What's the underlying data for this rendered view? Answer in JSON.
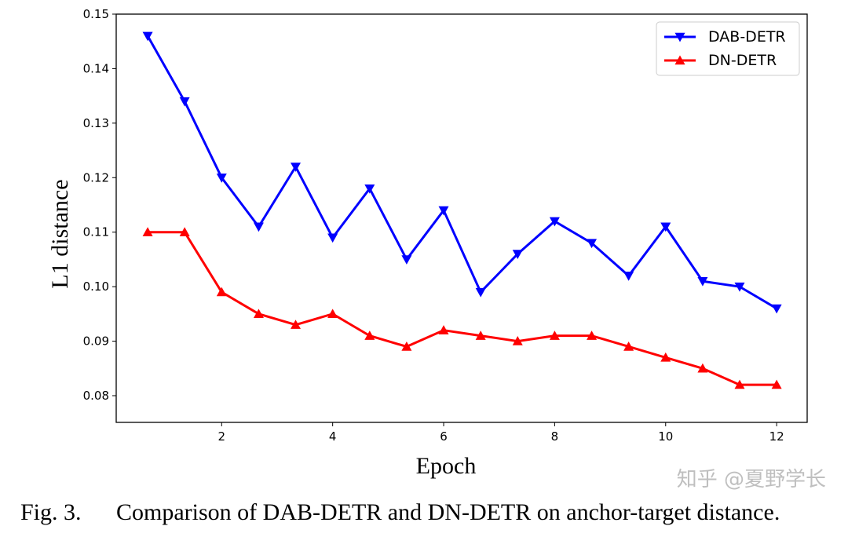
{
  "chart_data": {
    "type": "line",
    "xlabel": "Epoch",
    "ylabel": "L1 distance",
    "xlim": [
      0.1,
      12.55
    ],
    "ylim": [
      0.0751,
      0.15
    ],
    "xticks": [
      2,
      4,
      6,
      8,
      10,
      12
    ],
    "yticks": [
      0.08,
      0.09,
      0.1,
      0.11,
      0.12,
      0.13,
      0.14,
      0.15
    ],
    "ytick_labels": [
      "0.08",
      "0.09",
      "0.10",
      "0.11",
      "0.12",
      "0.13",
      "0.14",
      "0.15"
    ],
    "grid": false,
    "legend_position": "top-right",
    "x": [
      0.667,
      1.333,
      2,
      2.667,
      3.333,
      4,
      4.667,
      5.333,
      6,
      6.667,
      7.333,
      8,
      8.667,
      9.333,
      10,
      10.667,
      11.333,
      12
    ],
    "series": [
      {
        "name": "DAB-DETR",
        "color": "#0000ff",
        "marker": "triangle-down",
        "values": [
          0.146,
          0.134,
          0.12,
          0.111,
          0.122,
          0.109,
          0.118,
          0.105,
          0.114,
          0.099,
          0.106,
          0.112,
          0.108,
          0.102,
          0.111,
          0.101,
          0.1,
          0.096
        ]
      },
      {
        "name": "DN-DETR",
        "color": "#ff0000",
        "marker": "triangle-up",
        "values": [
          0.11,
          0.11,
          0.099,
          0.095,
          0.093,
          0.095,
          0.091,
          0.089,
          0.092,
          0.091,
          0.09,
          0.091,
          0.091,
          0.089,
          0.087,
          0.085,
          0.082,
          0.082
        ]
      }
    ]
  },
  "caption": {
    "number": "Fig. 3.",
    "text": "Comparison of DAB-DETR and DN-DETR on anchor-target distance."
  },
  "watermark": "知乎 @夏野学长"
}
